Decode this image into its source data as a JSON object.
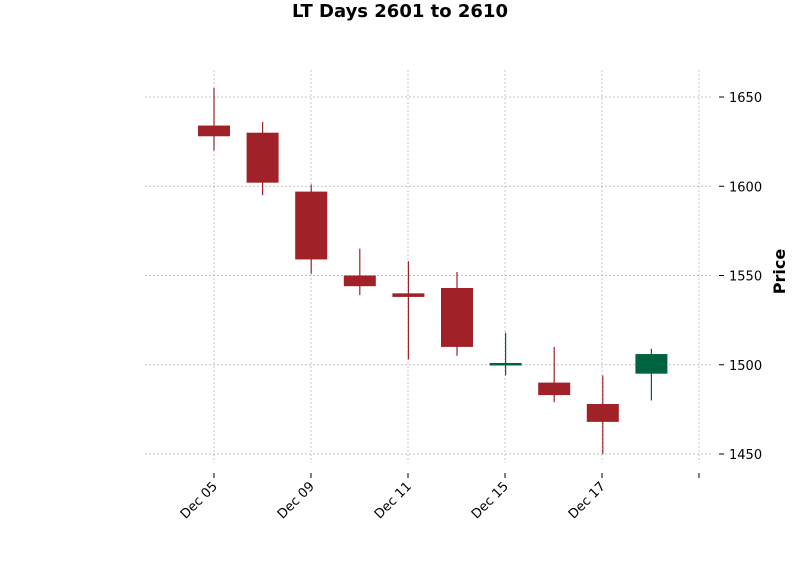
{
  "chart_data": {
    "type": "candlestick",
    "title": "LT Days 2601 to 2610",
    "xlabel": "",
    "ylabel": "Price",
    "ylim": [
      1440,
      1665
    ],
    "yticks": [
      1450,
      1500,
      1550,
      1600,
      1650
    ],
    "xtick_labels": [
      "Dec 05",
      "Dec 09",
      "Dec 11",
      "Dec 15",
      "Dec 17",
      ""
    ],
    "grid": true,
    "colors": {
      "up": "#006340",
      "down": "#a02128",
      "grid": "#b0b0b0"
    },
    "candles": [
      {
        "open": 1634,
        "high": 1655,
        "low": 1620,
        "close": 1628
      },
      {
        "open": 1630,
        "high": 1636,
        "low": 1595,
        "close": 1602
      },
      {
        "open": 1597,
        "high": 1601,
        "low": 1551,
        "close": 1559
      },
      {
        "open": 1550,
        "high": 1565,
        "low": 1539,
        "close": 1544
      },
      {
        "open": 1540,
        "high": 1558,
        "low": 1503,
        "close": 1538
      },
      {
        "open": 1543,
        "high": 1552,
        "low": 1505,
        "close": 1510
      },
      {
        "open": 1500,
        "high": 1518,
        "low": 1494,
        "close": 1501
      },
      {
        "open": 1490,
        "high": 1510,
        "low": 1479,
        "close": 1483
      },
      {
        "open": 1478,
        "high": 1494,
        "low": 1450,
        "close": 1468
      },
      {
        "open": 1495,
        "high": 1509,
        "low": 1480,
        "close": 1506
      }
    ]
  }
}
